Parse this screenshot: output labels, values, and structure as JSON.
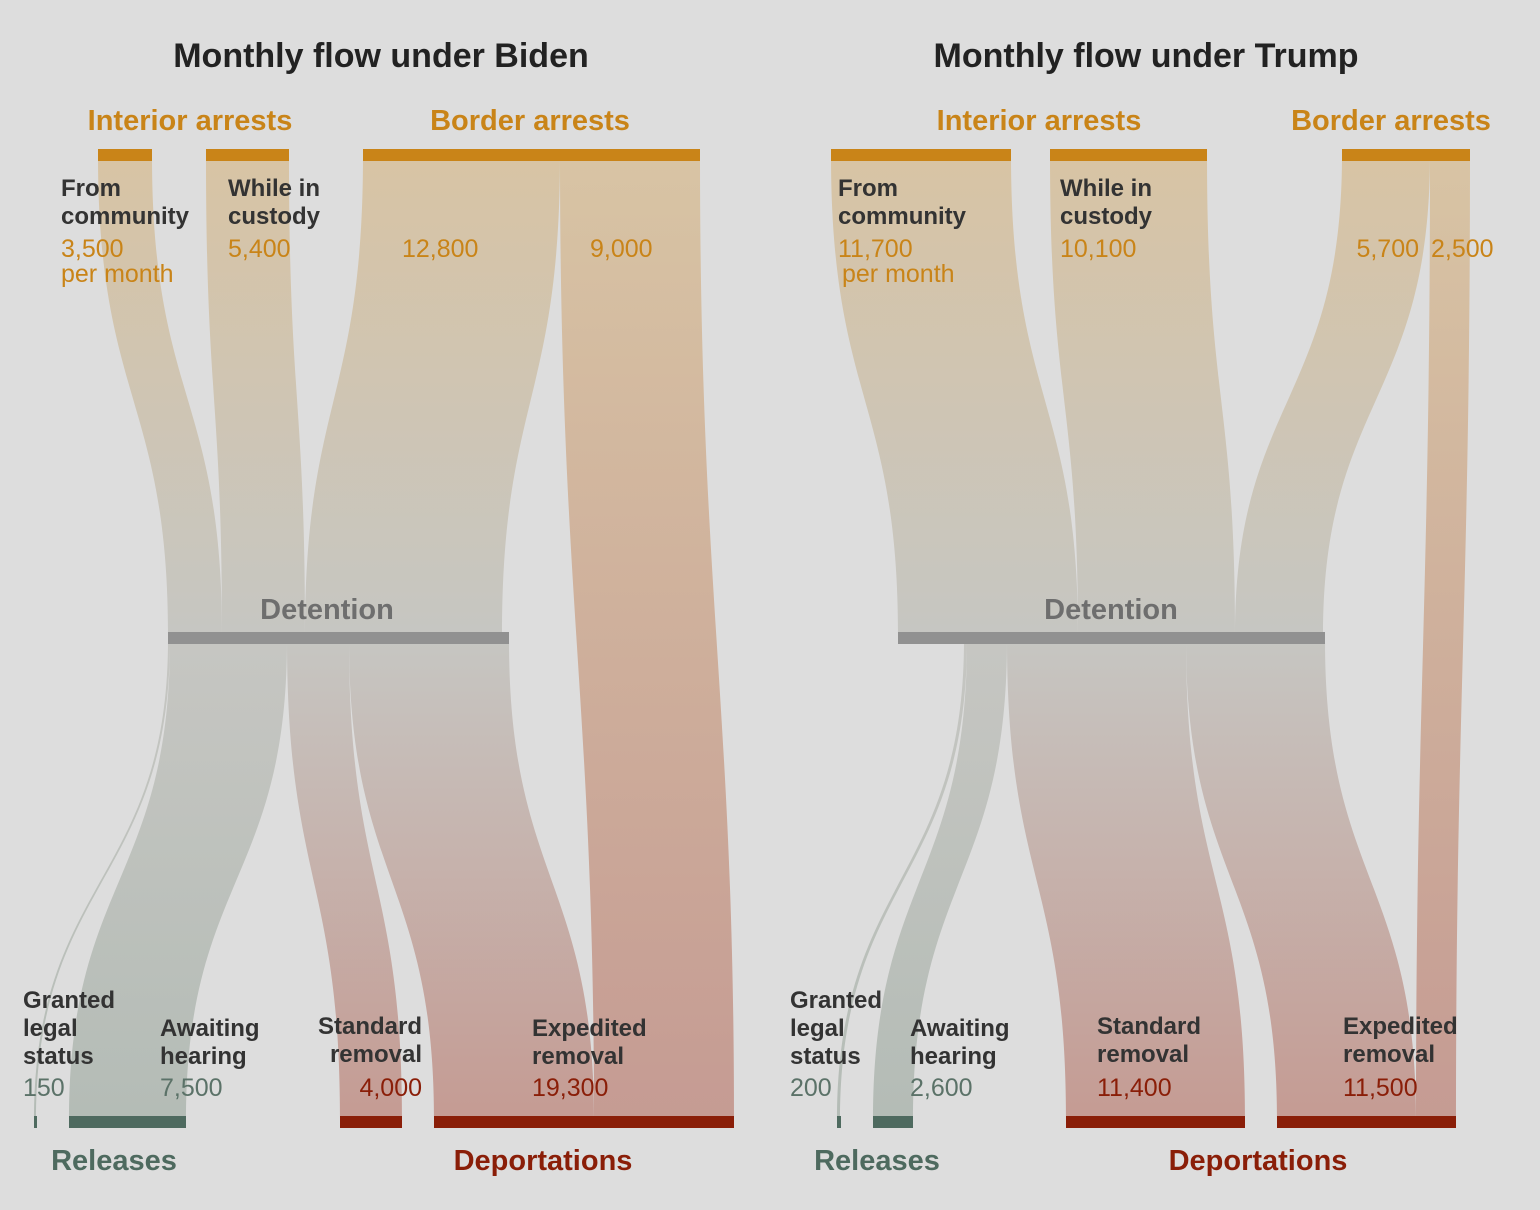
{
  "colors": {
    "background": "#dddddd",
    "arrests": "#c98418",
    "arrests_flow_top": "#d8c4a4",
    "detention": "#919191",
    "detention_flow": "#c6c6c2",
    "releases": "#4e6a5f",
    "releases_flow": "#b4bcb6",
    "deportations": "#8a1e08",
    "deportations_flow": "#c59b93"
  },
  "labels": {
    "interior": "Interior arrests",
    "border": "Border arrests",
    "detention": "Detention",
    "releases": "Releases",
    "deportations": "Deportations",
    "per_month": "per month",
    "from_community": [
      "From",
      "community"
    ],
    "while_in_custody": [
      "While in",
      "custody"
    ],
    "granted_legal_status": [
      "Granted",
      "legal",
      "status"
    ],
    "awaiting_hearing": [
      "Awaiting",
      "hearing"
    ],
    "standard_removal": [
      "Standard",
      "removal"
    ],
    "expedited_removal": [
      "Expedited",
      "removal"
    ]
  },
  "chart_data": [
    {
      "type": "sankey",
      "title": "Monthly flow under Biden",
      "unit": "people per month",
      "sources": [
        {
          "category": "Interior arrests",
          "name": "From community",
          "value": 3500,
          "value_label": "3,500"
        },
        {
          "category": "Interior arrests",
          "name": "While in custody",
          "value": 5400,
          "value_label": "5,400"
        },
        {
          "category": "Border arrests",
          "name": "Border arrests to detention",
          "value": 12800,
          "value_label": "12,800"
        },
        {
          "category": "Border arrests",
          "name": "Border arrests to expedited removal",
          "value": 9000,
          "value_label": "9,000"
        }
      ],
      "middle": {
        "name": "Detention"
      },
      "outcomes": [
        {
          "category": "Releases",
          "name": "Granted legal status",
          "value": 150,
          "value_label": "150"
        },
        {
          "category": "Releases",
          "name": "Awaiting hearing",
          "value": 7500,
          "value_label": "7,500"
        },
        {
          "category": "Deportations",
          "name": "Standard removal",
          "value": 4000,
          "value_label": "4,000"
        },
        {
          "category": "Deportations",
          "name": "Expedited removal",
          "value": 19300,
          "value_label": "19,300"
        }
      ]
    },
    {
      "type": "sankey",
      "title": "Monthly flow under Trump",
      "unit": "people per month",
      "sources": [
        {
          "category": "Interior arrests",
          "name": "From community",
          "value": 11700,
          "value_label": "11,700"
        },
        {
          "category": "Interior arrests",
          "name": "While in custody",
          "value": 10100,
          "value_label": "10,100"
        },
        {
          "category": "Border arrests",
          "name": "Border arrests to detention",
          "value": 5700,
          "value_label": "5,700"
        },
        {
          "category": "Border arrests",
          "name": "Border arrests to expedited removal",
          "value": 2500,
          "value_label": "2,500"
        }
      ],
      "middle": {
        "name": "Detention"
      },
      "outcomes": [
        {
          "category": "Releases",
          "name": "Granted legal status",
          "value": 200,
          "value_label": "200"
        },
        {
          "category": "Releases",
          "name": "Awaiting hearing",
          "value": 2600,
          "value_label": "2,600"
        },
        {
          "category": "Deportations",
          "name": "Standard removal",
          "value": 11400,
          "value_label": "11,400"
        },
        {
          "category": "Deportations",
          "name": "Expedited removal",
          "value": 11500,
          "value_label": "11,500"
        }
      ]
    }
  ]
}
